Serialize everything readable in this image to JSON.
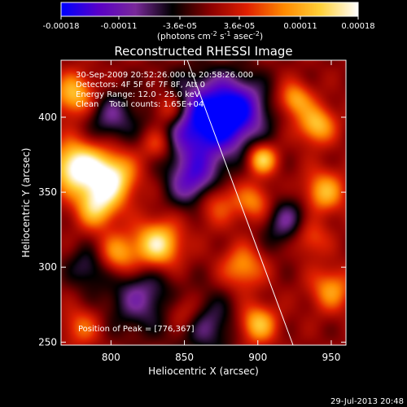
{
  "footer": {
    "date": "29-Jul-2013 20:48"
  },
  "colorbar": {
    "tick_labels": [
      "-0.00018",
      "-0.00011",
      "-3.6e-05",
      "3.6e-05",
      "0.00011",
      "0.00018"
    ],
    "unit_label_main": "(photons cm",
    "unit_sup1": "-2",
    "unit_mid1": " s",
    "unit_sup2": "-1",
    "unit_mid2": " asec",
    "unit_sup3": "-2",
    "unit_close": ")",
    "colors": [
      "#0000ff",
      "#5a00c8",
      "#7a2a9a",
      "#000000",
      "#8a0000",
      "#e02000",
      "#ff8a00",
      "#ffd23a",
      "#ffffff"
    ]
  },
  "chart_data": {
    "type": "heatmap",
    "title": "Reconstructed RHESSI Image",
    "xlabel": "Heliocentric X (arcsec)",
    "ylabel": "Heliocentric Y (arcsec)",
    "xlim": [
      766,
      960
    ],
    "ylim": [
      248,
      438
    ],
    "x_ticks": [
      800,
      850,
      900,
      950
    ],
    "y_ticks": [
      250,
      300,
      350,
      400
    ],
    "x_tick_labels": [
      "800",
      "850",
      "900",
      "950"
    ],
    "y_tick_labels": [
      "250",
      "300",
      "350",
      "400"
    ],
    "annotations": [
      "30-Sep-2009 20:52:26.000 to 20:58:26.000",
      "Detectors: 4F 5F 6F 7F 8F, Att 0",
      "Energy Range: 12.0 - 25.0 keV",
      "Clean    Total counts: 1.65E+04"
    ],
    "peak_label": "Position of Peak = [776,367]",
    "peak_position": [
      776,
      367
    ],
    "limb_line": [
      [
        852,
        438
      ],
      [
        924,
        248
      ]
    ],
    "intensity_range": [
      -0.00018,
      0.00018
    ],
    "blobs": [
      {
        "x": 776,
        "y": 367,
        "amp": 1.0,
        "s": 12
      },
      {
        "x": 800,
        "y": 360,
        "amp": 0.95,
        "s": 12
      },
      {
        "x": 790,
        "y": 340,
        "amp": 0.7,
        "s": 10
      },
      {
        "x": 832,
        "y": 315,
        "amp": 0.9,
        "s": 11
      },
      {
        "x": 805,
        "y": 308,
        "amp": 0.6,
        "s": 10
      },
      {
        "x": 775,
        "y": 415,
        "amp": 0.7,
        "s": 10
      },
      {
        "x": 840,
        "y": 405,
        "amp": 0.65,
        "s": 9
      },
      {
        "x": 832,
        "y": 382,
        "amp": 0.5,
        "s": 8
      },
      {
        "x": 870,
        "y": 345,
        "amp": 0.55,
        "s": 11
      },
      {
        "x": 903,
        "y": 372,
        "amp": 0.8,
        "s": 7
      },
      {
        "x": 898,
        "y": 343,
        "amp": 0.5,
        "s": 9
      },
      {
        "x": 940,
        "y": 395,
        "amp": 0.7,
        "s": 9
      },
      {
        "x": 925,
        "y": 412,
        "amp": 0.6,
        "s": 8
      },
      {
        "x": 945,
        "y": 350,
        "amp": 0.65,
        "s": 10
      },
      {
        "x": 935,
        "y": 320,
        "amp": 0.45,
        "s": 9
      },
      {
        "x": 890,
        "y": 300,
        "amp": 0.55,
        "s": 10
      },
      {
        "x": 950,
        "y": 285,
        "amp": 0.55,
        "s": 10
      },
      {
        "x": 900,
        "y": 262,
        "amp": 0.7,
        "s": 9
      },
      {
        "x": 850,
        "y": 270,
        "amp": 0.4,
        "s": 9
      },
      {
        "x": 780,
        "y": 260,
        "amp": 0.4,
        "s": 9
      },
      {
        "x": 860,
        "y": 395,
        "amp": -0.95,
        "s": 20
      },
      {
        "x": 885,
        "y": 405,
        "amp": -0.8,
        "s": 15
      },
      {
        "x": 858,
        "y": 355,
        "amp": -0.75,
        "s": 12
      },
      {
        "x": 800,
        "y": 400,
        "amp": -0.45,
        "s": 12
      },
      {
        "x": 820,
        "y": 280,
        "amp": -0.5,
        "s": 16
      },
      {
        "x": 865,
        "y": 262,
        "amp": -0.45,
        "s": 14
      },
      {
        "x": 920,
        "y": 330,
        "amp": -0.5,
        "s": 12
      },
      {
        "x": 785,
        "y": 300,
        "amp": -0.4,
        "s": 10
      }
    ]
  }
}
